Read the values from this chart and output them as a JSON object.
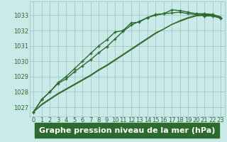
{
  "title": "Graphe pression niveau de la mer (hPa)",
  "bg_color": "#caeaea",
  "plot_bg_color": "#caeaea",
  "line_color": "#2d6a2d",
  "grid_color": "#9bbfbf",
  "ylim": [
    1026.4,
    1033.9
  ],
  "xlim": [
    -0.5,
    23.5
  ],
  "yticks": [
    1027,
    1028,
    1029,
    1030,
    1031,
    1032,
    1033
  ],
  "xticks": [
    0,
    1,
    2,
    3,
    4,
    5,
    6,
    7,
    8,
    9,
    10,
    11,
    12,
    13,
    14,
    15,
    16,
    17,
    18,
    19,
    20,
    21,
    22,
    23
  ],
  "series": [
    {
      "y": [
        1026.7,
        1027.5,
        1028.0,
        1028.6,
        1029.0,
        1029.5,
        1030.0,
        1030.5,
        1031.0,
        1031.4,
        1031.9,
        1032.0,
        1032.5,
        1032.55,
        1032.85,
        1033.05,
        1033.1,
        1033.35,
        1033.3,
        1033.2,
        1033.1,
        1033.1,
        1033.05,
        1032.85
      ],
      "marker": true,
      "lw": 1.0
    },
    {
      "y": [
        1026.7,
        1027.5,
        1028.0,
        1028.55,
        1028.85,
        1029.3,
        1029.7,
        1030.1,
        1030.55,
        1030.95,
        1031.45,
        1031.95,
        1032.35,
        1032.6,
        1032.85,
        1033.0,
        1033.1,
        1033.15,
        1033.2,
        1033.1,
        1033.05,
        1032.95,
        1032.95,
        1032.8
      ],
      "marker": true,
      "lw": 1.0
    },
    {
      "y": [
        1026.7,
        1027.2,
        1027.55,
        1027.9,
        1028.2,
        1028.5,
        1028.8,
        1029.1,
        1029.45,
        1029.75,
        1030.1,
        1030.45,
        1030.8,
        1031.15,
        1031.5,
        1031.85,
        1032.1,
        1032.4,
        1032.65,
        1032.85,
        1033.0,
        1033.05,
        1033.05,
        1032.9
      ],
      "marker": false,
      "lw": 0.9
    },
    {
      "y": [
        1026.7,
        1027.15,
        1027.5,
        1027.85,
        1028.15,
        1028.45,
        1028.75,
        1029.05,
        1029.4,
        1029.7,
        1030.05,
        1030.4,
        1030.75,
        1031.1,
        1031.45,
        1031.8,
        1032.1,
        1032.4,
        1032.6,
        1032.8,
        1032.95,
        1033.0,
        1033.0,
        1032.85
      ],
      "marker": false,
      "lw": 0.9
    }
  ],
  "title_fontsize": 8,
  "tick_fontsize": 6,
  "title_color": "#1a4a1a",
  "title_bg": "#2d6a2d"
}
